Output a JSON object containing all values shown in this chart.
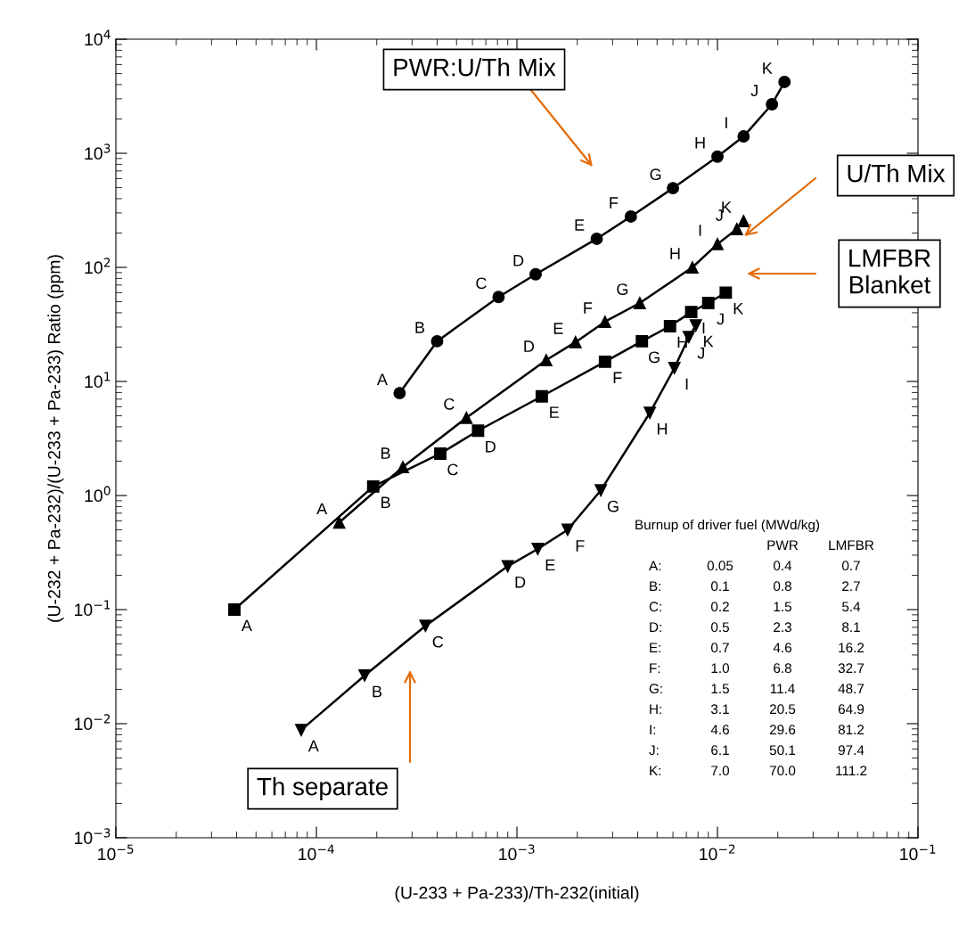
{
  "chart_data": {
    "type": "line",
    "xlabel": "(U-233 + Pa-233)/Th-232(initial)",
    "ylabel": "(U-232 + Pa-232)/(U-233 + Pa-233) Ratio (ppm)",
    "log": "xy",
    "xlim": [
      1e-05,
      0.1
    ],
    "ylim": [
      0.001,
      10000
    ],
    "xticks": [
      {
        "value": 1e-05,
        "label": "10$^{−5}$"
      },
      {
        "value": 0.0001,
        "label": "10$^{−4}$"
      },
      {
        "value": 0.001,
        "label": "10$^{−3}$"
      },
      {
        "value": 0.01,
        "label": "10$^{−2}$"
      },
      {
        "value": 0.1,
        "label": "10$^{−1}$"
      }
    ],
    "yticks": [
      {
        "value": 0.001,
        "label": "10$^{−3}$"
      },
      {
        "value": 0.01,
        "label": "10$^{−2}$"
      },
      {
        "value": 0.1,
        "label": "10$^{−1}$"
      },
      {
        "value": 1,
        "label": "10$^{0}$"
      },
      {
        "value": 10,
        "label": "10$^{1}$"
      },
      {
        "value": 100,
        "label": "10$^{2}$"
      },
      {
        "value": 1000,
        "label": "10$^{3}$"
      },
      {
        "value": 10000,
        "label": "10$^{4}$"
      }
    ],
    "grid": false,
    "legend": "top right",
    "series": [
      {
        "name": "PWR:U/Th Mix",
        "color": "#000000",
        "marker": "circle",
        "x": [
          0.00026,
          0.0004,
          0.00081,
          0.00124,
          0.0025,
          0.0037,
          0.006,
          0.01,
          0.0135,
          0.0187,
          0.0216
        ],
        "values": [
          7.9,
          22.5,
          55,
          87,
          178,
          279,
          495,
          935,
          1406,
          2690,
          4220
        ],
        "value_labels": [
          "A",
          "B",
          "C",
          "D",
          "E",
          "F",
          "G",
          "H",
          "I",
          "J",
          "K"
        ]
      },
      {
        "name": "U/Th Mix",
        "color": "#000000",
        "marker": "triangle",
        "x": [
          0.00013,
          0.00027,
          0.00056,
          0.0014,
          0.00196,
          0.00275,
          0.0041,
          0.0075,
          0.01,
          0.0125,
          0.0135
        ],
        "values": [
          0.58,
          1.78,
          4.8,
          15.4,
          22.1,
          33.4,
          48.7,
          100,
          160,
          217,
          255
        ],
        "value_labels": [
          "A",
          "B",
          "C",
          "D",
          "E",
          "F",
          "G",
          "H",
          "I",
          "J",
          "K"
        ]
      },
      {
        "name": "LMFBR\nBlanket",
        "color": "#000000",
        "marker": "square",
        "x": [
          3.9e-05,
          0.000192,
          0.000415,
          0.00064,
          0.00133,
          0.00275,
          0.0042,
          0.0058,
          0.0074,
          0.009,
          0.011
        ],
        "values": [
          0.1,
          1.2,
          2.33,
          3.7,
          7.4,
          14.9,
          22.5,
          30.5,
          40.6,
          48.7,
          60
        ],
        "value_labels": [
          "A",
          "B",
          "C",
          "D",
          "E",
          "F",
          "G",
          "H",
          "I",
          "J",
          "K"
        ]
      },
      {
        "name": "Th separate",
        "color": "#000000",
        "marker": "triangle_down",
        "x": [
          8.4e-05,
          0.000174,
          0.00035,
          0.0009,
          0.00127,
          0.00179,
          0.00262,
          0.0046,
          0.0061,
          0.0072,
          0.0078
        ],
        "values": [
          0.0088,
          0.0264,
          0.072,
          0.24,
          0.34,
          0.5,
          1.11,
          5.3,
          13.1,
          24.5,
          31
        ],
        "value_labels": [
          "A",
          "B",
          "C",
          "D",
          "E",
          "F",
          "G",
          "H",
          "I",
          "J",
          "K"
        ]
      }
    ],
    "annotations": [
      "Burnup of driver fuel (MWd/kg)",
      "\t\tPWR\tLMFBR",
      "A:\t0.05\t0.4\t0.7",
      "B:\t0.1\t0.8\t2.7",
      "C:\t0.2\t1.5\t5.4",
      "D:\t0.5\t2.3\t8.1",
      "E:\t0.7\t4.6\t16.2",
      "F:\t1.0\t6.8\t32.7",
      "G:\t1.5\t11.4\t48.7",
      "H:\t3.1\t20.5\t64.9",
      "I:\t4.6\t29.6\t81.2",
      "J:\t6.1\t50.1\t97.4",
      "K:\t7.0\t70.0\t111.2"
    ]
  }
}
